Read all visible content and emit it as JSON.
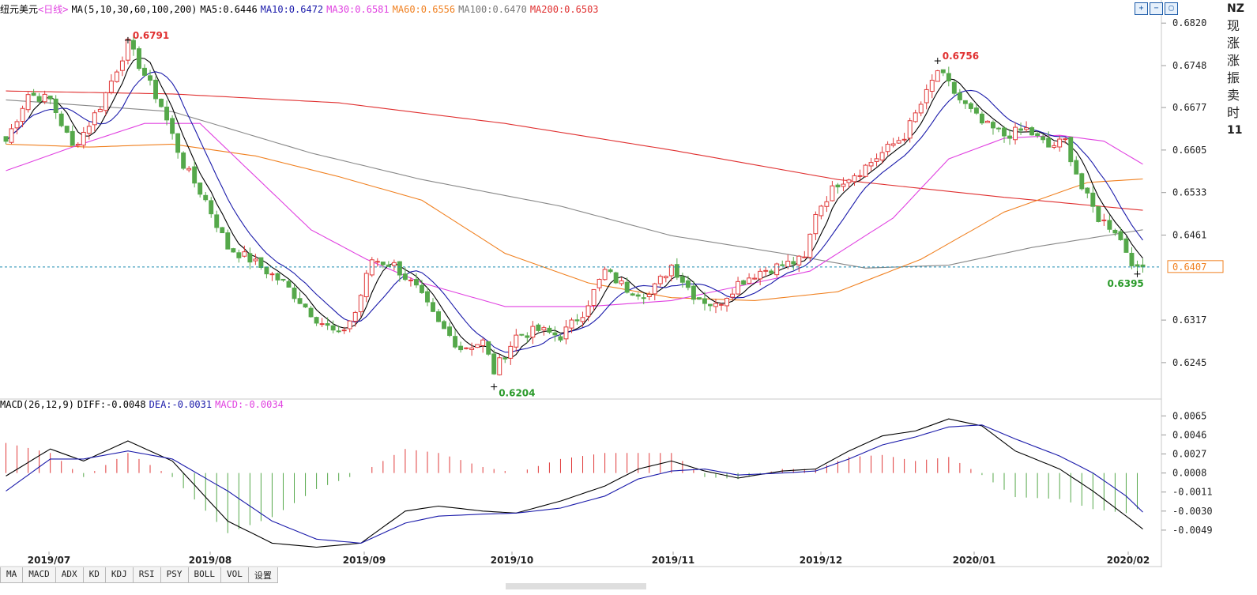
{
  "header": {
    "symbol": "纽元美元",
    "period": "<日线>",
    "ma_label": "MA(5,10,30,60,100,200)",
    "ma_values": [
      {
        "label": "MA5:0.6446",
        "color": "#000000"
      },
      {
        "label": "MA10:0.6472",
        "color": "#1a1aaa"
      },
      {
        "label": "MA30:0.6581",
        "color": "#e040e0"
      },
      {
        "label": "MA60:0.6556",
        "color": "#f08020"
      },
      {
        "label": "MA100:0.6470",
        "color": "#777777"
      },
      {
        "label": "MA200:0.6503",
        "color": "#e03030"
      }
    ]
  },
  "macd_header": {
    "label": "MACD(26,12,9)",
    "diff": "DIFF:-0.0048",
    "dea": "DEA:-0.0031",
    "macd": "MACD:-0.0034"
  },
  "tabs": [
    "MA",
    "MACD",
    "ADX",
    "KD",
    "KDJ",
    "RSI",
    "PSY",
    "BOLL",
    "VOL",
    "设置"
  ],
  "right_panel": [
    "NZ",
    "现",
    "涨",
    "涨",
    "振",
    "卖",
    "时",
    "11"
  ],
  "chart_data": {
    "type": "candlestick",
    "x_ticks": [
      "2019/07",
      "2019/08",
      "2019/09",
      "2019/10",
      "2019/11",
      "2019/12",
      "2020/01",
      "2020/02"
    ],
    "price_axis": {
      "ticks": [
        "0.6820",
        "0.6748",
        "0.6677",
        "0.6605",
        "0.6533",
        "0.6461",
        "0.6317",
        "0.6245"
      ],
      "range": [
        0.619,
        0.6835
      ]
    },
    "current_price": "0.6407",
    "annotations": [
      {
        "text": "0.6791",
        "index": 22,
        "value": 0.6791,
        "color": "#e03030"
      },
      {
        "text": "0.6204",
        "index": 88,
        "value": 0.6204,
        "color": "#2a9a2a"
      },
      {
        "text": "0.6756",
        "index": 168,
        "value": 0.6756,
        "color": "#e03030"
      },
      {
        "text": "0.6395",
        "index": 204,
        "value": 0.6395,
        "color": "#2a9a2a"
      }
    ],
    "candle_count": 206,
    "anchors": [
      [
        0,
        0.662
      ],
      [
        4,
        0.67
      ],
      [
        8,
        0.669
      ],
      [
        12,
        0.661
      ],
      [
        14,
        0.6635
      ],
      [
        17,
        0.668
      ],
      [
        22,
        0.6785
      ],
      [
        28,
        0.668
      ],
      [
        32,
        0.658
      ],
      [
        36,
        0.652
      ],
      [
        40,
        0.644
      ],
      [
        44,
        0.642
      ],
      [
        50,
        0.638
      ],
      [
        56,
        0.632
      ],
      [
        60,
        0.629
      ],
      [
        63,
        0.633
      ],
      [
        66,
        0.642
      ],
      [
        70,
        0.641
      ],
      [
        74,
        0.637
      ],
      [
        78,
        0.631
      ],
      [
        82,
        0.627
      ],
      [
        86,
        0.628
      ],
      [
        88,
        0.623
      ],
      [
        92,
        0.629
      ],
      [
        96,
        0.63
      ],
      [
        100,
        0.629
      ],
      [
        104,
        0.633
      ],
      [
        108,
        0.64
      ],
      [
        112,
        0.637
      ],
      [
        116,
        0.636
      ],
      [
        120,
        0.641
      ],
      [
        124,
        0.636
      ],
      [
        128,
        0.634
      ],
      [
        132,
        0.638
      ],
      [
        136,
        0.64
      ],
      [
        140,
        0.641
      ],
      [
        144,
        0.642
      ],
      [
        146,
        0.65
      ],
      [
        150,
        0.655
      ],
      [
        154,
        0.657
      ],
      [
        158,
        0.66
      ],
      [
        162,
        0.663
      ],
      [
        166,
        0.67
      ],
      [
        168,
        0.674
      ],
      [
        172,
        0.669
      ],
      [
        176,
        0.665
      ],
      [
        180,
        0.663
      ],
      [
        184,
        0.664
      ],
      [
        188,
        0.661
      ],
      [
        191,
        0.662
      ],
      [
        194,
        0.654
      ],
      [
        197,
        0.649
      ],
      [
        200,
        0.647
      ],
      [
        204,
        0.64
      ],
      [
        205,
        0.6407
      ]
    ],
    "ma_series": [
      {
        "name": "MA200",
        "color": "#e03030",
        "points": [
          [
            0,
            0.6705
          ],
          [
            30,
            0.67
          ],
          [
            60,
            0.6685
          ],
          [
            90,
            0.665
          ],
          [
            120,
            0.6605
          ],
          [
            150,
            0.6555
          ],
          [
            180,
            0.6525
          ],
          [
            205,
            0.6503
          ]
        ]
      },
      {
        "name": "MA100",
        "color": "#888888",
        "points": [
          [
            0,
            0.669
          ],
          [
            30,
            0.667
          ],
          [
            55,
            0.66
          ],
          [
            75,
            0.6555
          ],
          [
            100,
            0.651
          ],
          [
            120,
            0.646
          ],
          [
            140,
            0.643
          ],
          [
            155,
            0.6405
          ],
          [
            170,
            0.641
          ],
          [
            185,
            0.644
          ],
          [
            205,
            0.647
          ]
        ]
      },
      {
        "name": "MA60",
        "color": "#f08020",
        "points": [
          [
            0,
            0.6615
          ],
          [
            15,
            0.661
          ],
          [
            30,
            0.6615
          ],
          [
            45,
            0.6595
          ],
          [
            60,
            0.656
          ],
          [
            75,
            0.652
          ],
          [
            90,
            0.643
          ],
          [
            105,
            0.638
          ],
          [
            120,
            0.6355
          ],
          [
            135,
            0.635
          ],
          [
            150,
            0.6365
          ],
          [
            165,
            0.642
          ],
          [
            180,
            0.65
          ],
          [
            195,
            0.655
          ],
          [
            205,
            0.6556
          ]
        ]
      },
      {
        "name": "MA30",
        "color": "#e040e0",
        "points": [
          [
            0,
            0.657
          ],
          [
            12,
            0.661
          ],
          [
            25,
            0.665
          ],
          [
            35,
            0.665
          ],
          [
            45,
            0.656
          ],
          [
            55,
            0.647
          ],
          [
            65,
            0.642
          ],
          [
            75,
            0.638
          ],
          [
            90,
            0.634
          ],
          [
            105,
            0.634
          ],
          [
            120,
            0.635
          ],
          [
            135,
            0.638
          ],
          [
            145,
            0.64
          ],
          [
            160,
            0.649
          ],
          [
            170,
            0.659
          ],
          [
            180,
            0.6625
          ],
          [
            190,
            0.663
          ],
          [
            198,
            0.662
          ],
          [
            205,
            0.6581
          ]
        ]
      }
    ],
    "macd": {
      "ticks": [
        "0.0065",
        "0.0046",
        "0.0027",
        "0.0008",
        "-0.0011",
        "-0.0030",
        "-0.0049"
      ],
      "range": [
        -0.0068,
        0.007
      ],
      "diff_points": [
        [
          0,
          0.0005
        ],
        [
          8,
          0.0032
        ],
        [
          14,
          0.002
        ],
        [
          22,
          0.004
        ],
        [
          30,
          0.002
        ],
        [
          40,
          -0.004
        ],
        [
          48,
          -0.0062
        ],
        [
          56,
          -0.0066
        ],
        [
          64,
          -0.0062
        ],
        [
          72,
          -0.003
        ],
        [
          78,
          -0.0025
        ],
        [
          86,
          -0.003
        ],
        [
          92,
          -0.0032
        ],
        [
          100,
          -0.002
        ],
        [
          108,
          -0.0005
        ],
        [
          114,
          0.0012
        ],
        [
          120,
          0.002
        ],
        [
          126,
          0.001
        ],
        [
          132,
          0.0003
        ],
        [
          140,
          0.001
        ],
        [
          146,
          0.0012
        ],
        [
          152,
          0.003
        ],
        [
          158,
          0.0045
        ],
        [
          164,
          0.005
        ],
        [
          170,
          0.0062
        ],
        [
          176,
          0.0055
        ],
        [
          182,
          0.003
        ],
        [
          190,
          0.0012
        ],
        [
          196,
          -0.001
        ],
        [
          202,
          -0.0035
        ],
        [
          205,
          -0.0048
        ]
      ],
      "dea_points": [
        [
          0,
          -0.001
        ],
        [
          8,
          0.0022
        ],
        [
          14,
          0.0022
        ],
        [
          22,
          0.003
        ],
        [
          30,
          0.0022
        ],
        [
          40,
          -0.001
        ],
        [
          48,
          -0.004
        ],
        [
          56,
          -0.0058
        ],
        [
          64,
          -0.0062
        ],
        [
          72,
          -0.0042
        ],
        [
          78,
          -0.0035
        ],
        [
          86,
          -0.0033
        ],
        [
          92,
          -0.0032
        ],
        [
          100,
          -0.0027
        ],
        [
          108,
          -0.0015
        ],
        [
          114,
          0.0002
        ],
        [
          120,
          0.001
        ],
        [
          126,
          0.0012
        ],
        [
          132,
          0.0006
        ],
        [
          140,
          0.0008
        ],
        [
          146,
          0.001
        ],
        [
          152,
          0.0022
        ],
        [
          158,
          0.0036
        ],
        [
          164,
          0.0044
        ],
        [
          170,
          0.0054
        ],
        [
          176,
          0.0056
        ],
        [
          182,
          0.0042
        ],
        [
          190,
          0.0025
        ],
        [
          196,
          0.0008
        ],
        [
          202,
          -0.0015
        ],
        [
          205,
          -0.0031
        ]
      ]
    }
  }
}
